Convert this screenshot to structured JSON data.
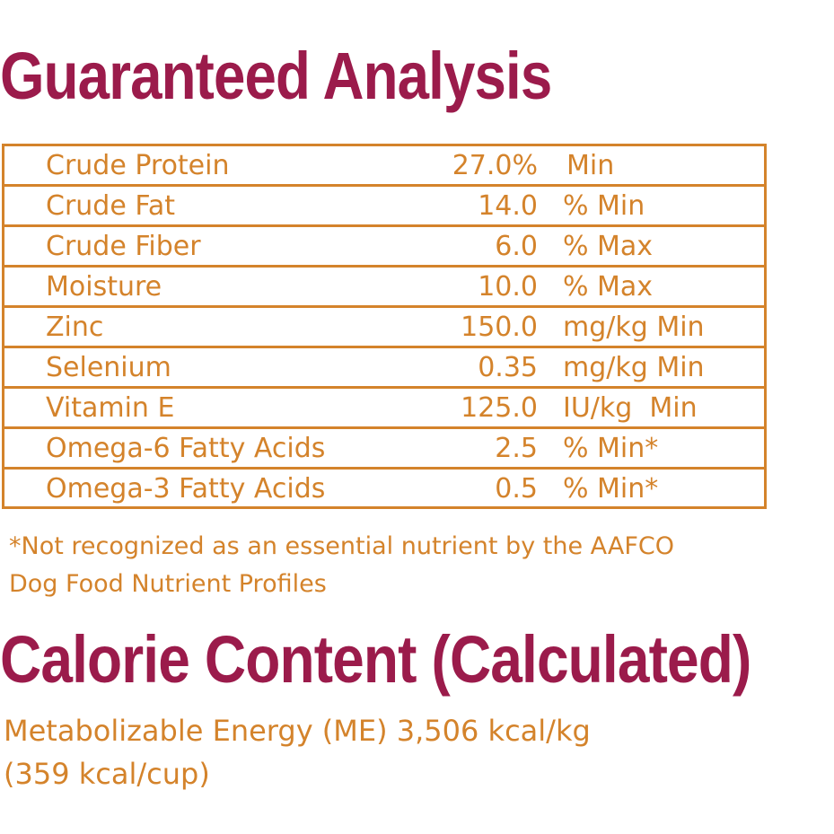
{
  "guaranteed_analysis": {
    "title": "Guaranteed Analysis",
    "rows": [
      {
        "name": "Crude Protein",
        "value": "27.0%",
        "unit": "Min"
      },
      {
        "name": "Crude Fat",
        "value": "14.0",
        "unit": "% Min"
      },
      {
        "name": "Crude Fiber",
        "value": "6.0",
        "unit": "% Max"
      },
      {
        "name": "Moisture",
        "value": "10.0",
        "unit": "% Max"
      },
      {
        "name": "Zinc",
        "value": "150.0",
        "unit": "mg/kg Min"
      },
      {
        "name": "Selenium",
        "value": "0.35",
        "unit": "mg/kg Min"
      },
      {
        "name": "Vitamin E",
        "value": "125.0",
        "unit": "IU/kg  Min"
      },
      {
        "name": "Omega-6 Fatty Acids",
        "value": "2.5",
        "unit": "% Min*"
      },
      {
        "name": "Omega-3 Fatty Acids",
        "value": "0.5",
        "unit": "% Min*"
      }
    ],
    "footnote_line1": "*Not recognized as an essential nutrient by the AAFCO",
    "footnote_line2": "Dog Food Nutrient Profiles"
  },
  "calorie_content": {
    "title": "Calorie Content (Calculated)",
    "line1": "Metabolizable Energy (ME) 3,506 kcal/kg",
    "line2": "(359 kcal/cup)"
  },
  "colors": {
    "heading": "#9b1b4b",
    "accent": "#d4832b"
  }
}
